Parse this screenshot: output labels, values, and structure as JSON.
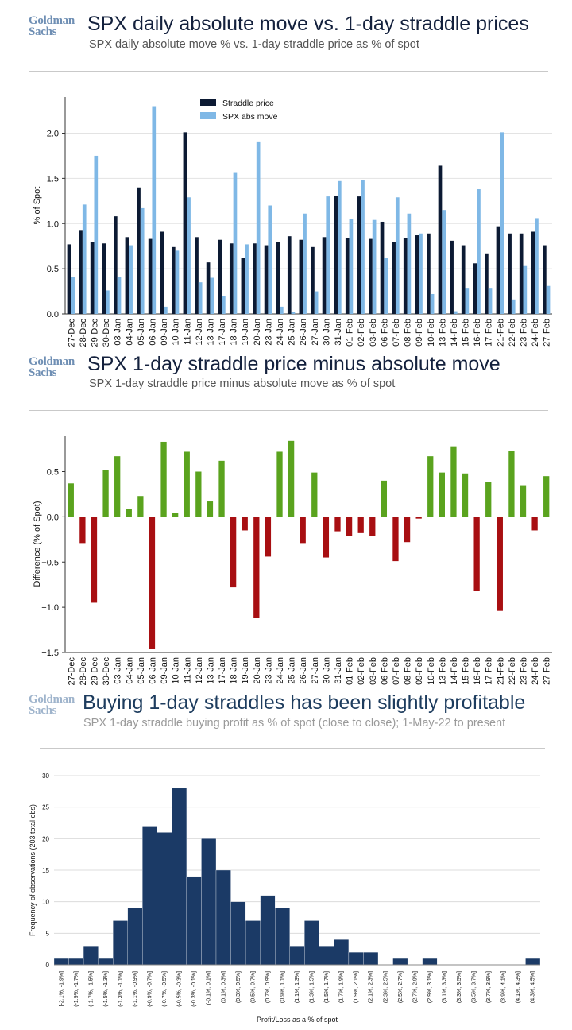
{
  "panels": [
    {
      "logo": [
        "Goldman",
        "Sachs"
      ],
      "title": "SPX daily absolute move vs. 1-day straddle prices",
      "subtitle": "SPX daily absolute move % vs. 1-day straddle price as % of spot"
    },
    {
      "logo": [
        "Goldman",
        "Sachs"
      ],
      "title": "SPX 1-day straddle price minus absolute move",
      "subtitle": "SPX 1-day straddle price minus absolute move as % of spot"
    },
    {
      "logo": [
        "Goldman",
        "Sachs"
      ],
      "title": "Buying 1-day straddles has been slightly profitable",
      "subtitle": "SPX 1-day straddle buying profit as % of spot (close to close); 1-May-22 to present"
    }
  ],
  "colors": {
    "straddle": "#0c1a33",
    "abs_move": "#7fb8e6",
    "positive": "#5aa31e",
    "negative": "#a80f12",
    "histogram": "#1b3a66"
  },
  "chart_data": [
    {
      "type": "bar",
      "categories": [
        "27-Dec",
        "28-Dec",
        "29-Dec",
        "30-Dec",
        "03-Jan",
        "04-Jan",
        "05-Jan",
        "06-Jan",
        "09-Jan",
        "10-Jan",
        "11-Jan",
        "12-Jan",
        "13-Jan",
        "17-Jan",
        "18-Jan",
        "19-Jan",
        "20-Jan",
        "23-Jan",
        "24-Jan",
        "25-Jan",
        "26-Jan",
        "27-Jan",
        "30-Jan",
        "31-Jan",
        "01-Feb",
        "02-Feb",
        "03-Feb",
        "06-Feb",
        "07-Feb",
        "08-Feb",
        "09-Feb",
        "10-Feb",
        "13-Feb",
        "14-Feb",
        "15-Feb",
        "16-Feb",
        "17-Feb",
        "21-Feb",
        "22-Feb",
        "23-Feb",
        "24-Feb",
        "27-Feb"
      ],
      "series": [
        {
          "name": "Straddle price",
          "values": [
            0.77,
            0.92,
            0.8,
            0.78,
            1.08,
            0.85,
            1.4,
            0.83,
            0.91,
            0.74,
            2.01,
            0.85,
            0.57,
            0.82,
            0.78,
            0.62,
            0.78,
            0.76,
            0.8,
            0.86,
            0.82,
            0.74,
            0.85,
            1.31,
            0.84,
            1.3,
            0.83,
            1.02,
            0.8,
            0.84,
            0.87,
            0.89,
            1.64,
            0.81,
            0.76,
            0.56,
            0.67,
            0.97,
            0.89,
            0.89,
            0.91,
            0.76
          ]
        },
        {
          "name": "SPX abs move",
          "values": [
            0.41,
            1.21,
            1.75,
            0.26,
            0.41,
            0.76,
            1.17,
            2.29,
            0.08,
            0.7,
            1.29,
            0.35,
            0.4,
            0.2,
            1.56,
            0.77,
            1.9,
            1.2,
            0.08,
            0.02,
            1.11,
            0.25,
            1.3,
            1.47,
            1.05,
            1.48,
            1.04,
            0.62,
            1.29,
            1.11,
            0.89,
            0.22,
            1.15,
            0.03,
            0.28,
            1.38,
            0.28,
            2.01,
            0.16,
            0.53,
            1.06,
            0.31
          ]
        }
      ],
      "title": "",
      "xlabel": "",
      "ylabel": "% of Spot",
      "ylim": [
        0,
        2.4
      ],
      "yticks": [
        "0.0",
        "0.5",
        "1.0",
        "1.5",
        "2.0"
      ],
      "ytick_values": [
        0,
        0.5,
        1.0,
        1.5,
        2.0
      ],
      "legend": "top-center",
      "grid": true
    },
    {
      "type": "bar",
      "categories": [
        "27-Dec",
        "28-Dec",
        "29-Dec",
        "30-Dec",
        "03-Jan",
        "04-Jan",
        "05-Jan",
        "06-Jan",
        "09-Jan",
        "10-Jan",
        "11-Jan",
        "12-Jan",
        "13-Jan",
        "17-Jan",
        "18-Jan",
        "19-Jan",
        "20-Jan",
        "23-Jan",
        "24-Jan",
        "25-Jan",
        "26-Jan",
        "27-Jan",
        "30-Jan",
        "31-Jan",
        "01-Feb",
        "02-Feb",
        "03-Feb",
        "06-Feb",
        "07-Feb",
        "08-Feb",
        "09-Feb",
        "10-Feb",
        "13-Feb",
        "14-Feb",
        "15-Feb",
        "16-Feb",
        "17-Feb",
        "21-Feb",
        "22-Feb",
        "23-Feb",
        "24-Feb",
        "27-Feb"
      ],
      "values": [
        0.37,
        -0.29,
        -0.95,
        0.52,
        0.67,
        0.09,
        0.23,
        -1.46,
        0.83,
        0.04,
        0.72,
        0.5,
        0.17,
        0.62,
        -0.78,
        -0.15,
        -1.12,
        -0.44,
        0.72,
        0.84,
        -0.29,
        0.49,
        -0.45,
        -0.16,
        -0.21,
        -0.18,
        -0.21,
        0.4,
        -0.49,
        -0.28,
        -0.02,
        0.67,
        0.49,
        0.78,
        0.48,
        -0.82,
        0.39,
        -1.04,
        0.73,
        0.35,
        -0.15,
        0.45
      ],
      "title": "",
      "xlabel": "",
      "ylabel": "Difference (% of Spot)",
      "ylim": [
        -1.5,
        0.9
      ],
      "yticks": [
        "−1.5",
        "−1.0",
        "−0.5",
        "0.0",
        "0.5"
      ],
      "ytick_values": [
        -1.5,
        -1.0,
        -0.5,
        0.0,
        0.5
      ],
      "grid": false
    },
    {
      "type": "bar",
      "categories": [
        "[-2.1%, -1.9%]",
        "(-1.9%, -1.7%]",
        "(-1.7%, -1.5%]",
        "(-1.5%, -1.3%]",
        "(-1.3%, -1.1%]",
        "(-1.1%, -0.9%]",
        "(-0.9%, -0.7%]",
        "(-0.7%, -0.5%]",
        "(-0.5%, -0.3%]",
        "(-0.3%, -0.1%]",
        "(-0.1%, 0.1%]",
        "(0.1%, 0.3%]",
        "(0.3%, 0.5%]",
        "(0.5%, 0.7%]",
        "(0.7%, 0.9%]",
        "(0.9%, 1.1%]",
        "(1.1%, 1.3%]",
        "(1.3%, 1.5%]",
        "(1.5%, 1.7%]",
        "(1.7%, 1.9%]",
        "(1.9%, 2.1%]",
        "(2.1%, 2.3%]",
        "(2.3%, 2.5%]",
        "(2.5%, 2.7%]",
        "(2.7%, 2.9%]",
        "(2.9%, 3.1%]",
        "(3.1%, 3.3%]",
        "(3.3%, 3.5%]",
        "(3.5%, 3.7%]",
        "(3.7%, 3.9%]",
        "(3.9%, 4.1%]",
        "(4.1%, 4.3%]",
        "(4.3%, 4.5%]"
      ],
      "values": [
        1,
        1,
        3,
        1,
        7,
        9,
        22,
        21,
        28,
        14,
        20,
        15,
        10,
        7,
        11,
        9,
        3,
        7,
        3,
        4,
        2,
        2,
        0,
        1,
        0,
        1,
        0,
        0,
        0,
        0,
        0,
        0,
        1
      ],
      "title": "",
      "xlabel": "Profit/Loss as a % of spot",
      "ylabel": "Frequency of observations (203 total obs)",
      "ylim": [
        0,
        30
      ],
      "yticks": [
        "0",
        "5",
        "10",
        "15",
        "20",
        "25",
        "30"
      ],
      "ytick_values": [
        0,
        5,
        10,
        15,
        20,
        25,
        30
      ],
      "grid": true
    }
  ]
}
